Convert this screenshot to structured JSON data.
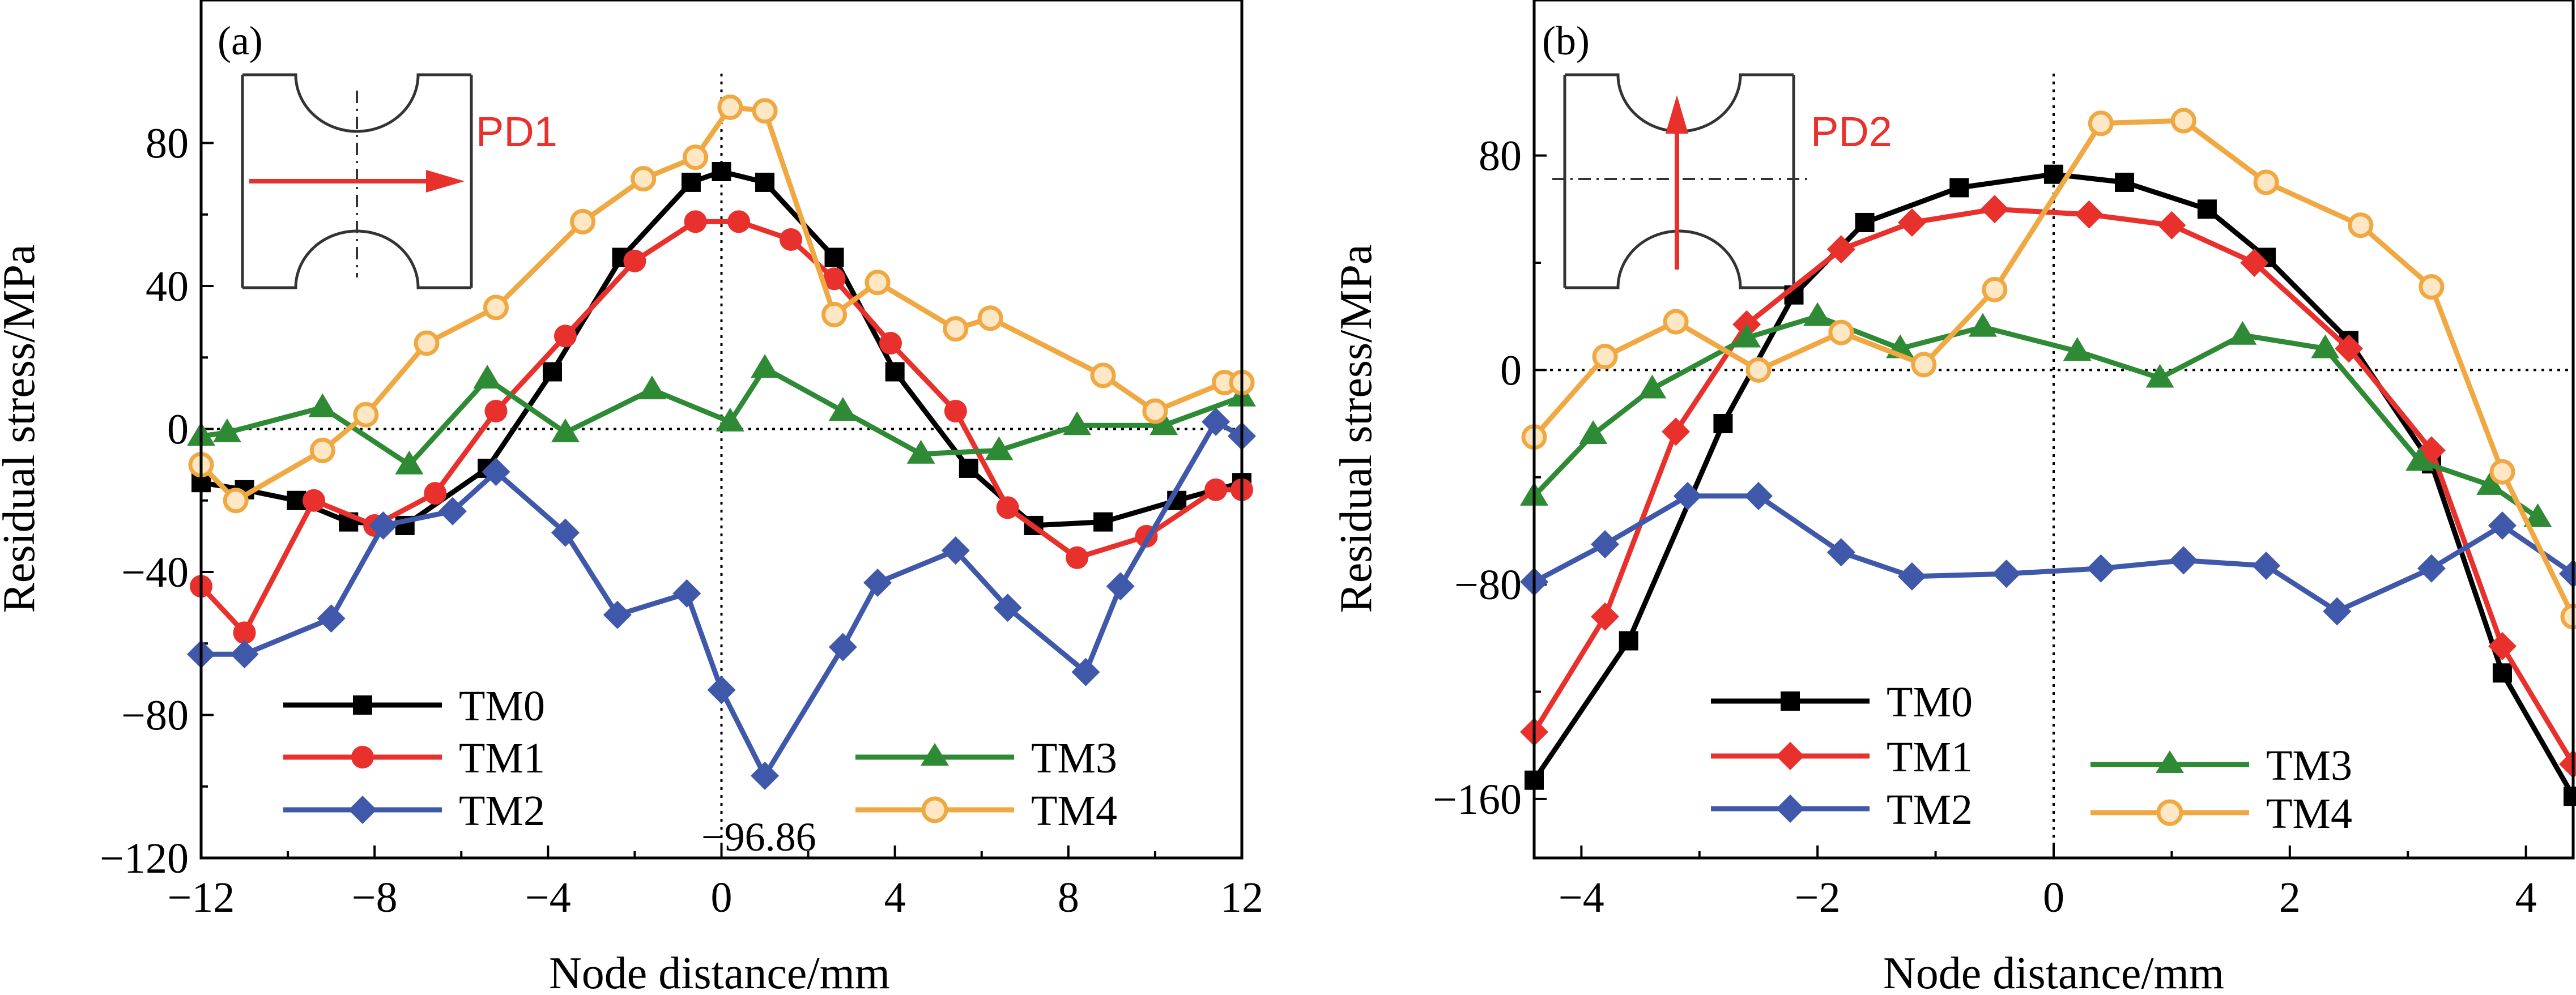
{
  "chart_data": [
    {
      "type": "line",
      "panel_label": "(a)",
      "xlabel": "Node distance/mm",
      "ylabel": "Residual stress/MPa",
      "xlim": [
        -12,
        12
      ],
      "ylim": [
        -120,
        120
      ],
      "xticks": [
        -12,
        -8,
        -4,
        0,
        4,
        8,
        12
      ],
      "xtick_labels": [
        "−12",
        "−8",
        "−4",
        "0",
        "4",
        "8",
        "12"
      ],
      "yticks": [
        -120,
        -80,
        -40,
        0,
        40,
        80
      ],
      "ytick_labels": [
        "−120",
        "−80",
        "−40",
        "0",
        "40",
        "80"
      ],
      "inset_label": "PD1",
      "inset_direction": "horizontal",
      "annotation": {
        "text": "−96.86",
        "x": 1.0,
        "y": -96.86
      },
      "series": [
        {
          "name": "TM0",
          "color": "#000000",
          "marker": "square",
          "x": [
            -12,
            -11,
            -9.8,
            -8.6,
            -7.3,
            -5.4,
            -3.9,
            -2.3,
            -0.7,
            0,
            1.0,
            2.6,
            4.0,
            5.7,
            7.2,
            8.8,
            10.5,
            12
          ],
          "y": [
            -15,
            -17,
            -20,
            -26,
            -27,
            -11,
            16,
            48,
            69,
            72,
            69,
            48,
            16,
            -11,
            -27,
            -26,
            -20,
            -15
          ]
        },
        {
          "name": "TM1",
          "color": "#e8312c",
          "marker": "circle",
          "x": [
            -12,
            -11,
            -9.4,
            -8,
            -6.6,
            -5.2,
            -3.6,
            -2,
            -0.6,
            0.4,
            1.6,
            2.6,
            3.9,
            5.4,
            6.6,
            8.2,
            9.8,
            11.4,
            12
          ],
          "y": [
            -44,
            -57,
            -20,
            -27,
            -18,
            5,
            26,
            47,
            58,
            58,
            53,
            42,
            24,
            5,
            -22,
            -36,
            -30,
            -17,
            -17
          ]
        },
        {
          "name": "TM2",
          "color": "#3f58a9",
          "marker": "diamond",
          "x": [
            -12,
            -11,
            -9,
            -7.8,
            -6.2,
            -5.2,
            -3.6,
            -2.4,
            -0.8,
            0,
            1,
            2.8,
            3.6,
            5.4,
            6.6,
            8.4,
            9.2,
            11.4,
            12
          ],
          "y": [
            -63,
            -63,
            -53,
            -27,
            -23,
            -12,
            -29,
            -52,
            -46,
            -73,
            -97,
            -61,
            -43,
            -34,
            -50,
            -68,
            -44,
            2,
            -2
          ]
        },
        {
          "name": "TM3",
          "color": "#2f8a35",
          "marker": "triangle",
          "x": [
            -12,
            -11.4,
            -9.2,
            -7.2,
            -5.4,
            -3.6,
            -1.6,
            0.2,
            1,
            2.8,
            4.6,
            6.4,
            8.2,
            10.2,
            12
          ],
          "y": [
            -2,
            -1,
            6,
            -10,
            14,
            -1,
            11,
            2,
            17,
            5,
            -7,
            -6,
            1,
            1,
            9
          ]
        },
        {
          "name": "TM4",
          "color": "#f0a843",
          "marker": "circle-open",
          "x": [
            -12,
            -11.2,
            -9.2,
            -8.2,
            -6.8,
            -5.2,
            -3.2,
            -1.8,
            -0.6,
            0.2,
            1,
            2.6,
            3.6,
            5.4,
            6.2,
            8.8,
            10,
            11.6,
            12
          ],
          "y": [
            -10,
            -20,
            -6,
            4,
            24,
            34,
            58,
            70,
            76,
            90,
            89,
            32,
            41,
            28,
            31,
            15,
            5,
            13,
            13
          ]
        }
      ]
    },
    {
      "type": "line",
      "panel_label": "(b)",
      "xlabel": "Node distance/mm",
      "ylabel": "Residual stress/MPa",
      "xlim": [
        -4.4,
        4.4
      ],
      "ylim": [
        -182,
        138
      ],
      "xticks": [
        -4,
        -2,
        0,
        2,
        4
      ],
      "xtick_labels": [
        "−4",
        "−2",
        "0",
        "2",
        "4"
      ],
      "yticks": [
        -160,
        -80,
        0,
        80
      ],
      "ytick_labels": [
        "−160",
        "−80",
        "0",
        "80"
      ],
      "inset_label": "PD2",
      "inset_direction": "vertical",
      "series": [
        {
          "name": "TM0",
          "color": "#000000",
          "marker": "square",
          "x": [
            -4.4,
            -3.6,
            -2.8,
            -2.2,
            -1.6,
            -0.8,
            0,
            0.6,
            1.3,
            1.8,
            2.5,
            3.2,
            3.8,
            4.4
          ],
          "y": [
            -153,
            -101,
            -20,
            28,
            55,
            68,
            73,
            70,
            60,
            42,
            11,
            -35,
            -113,
            -159
          ]
        },
        {
          "name": "TM1",
          "color": "#e8312c",
          "marker": "diamond",
          "x": [
            -4.4,
            -3.8,
            -3.2,
            -2.6,
            -1.8,
            -1.2,
            -0.5,
            0.3,
            1.0,
            1.7,
            2.5,
            3.2,
            3.8,
            4.4
          ],
          "y": [
            -135,
            -92,
            -23,
            17,
            45,
            55,
            60,
            58,
            54,
            40,
            8,
            -30,
            -103,
            -147
          ]
        },
        {
          "name": "TM2",
          "color": "#3f58a9",
          "marker": "diamond",
          "x": [
            -4.4,
            -3.8,
            -3.1,
            -2.5,
            -1.8,
            -1.2,
            -0.4,
            0.4,
            1.1,
            1.8,
            2.4,
            3.2,
            3.8,
            4.4
          ],
          "y": [
            -79,
            -65,
            -47,
            -47,
            -68,
            -77,
            -76,
            -74,
            -71,
            -73,
            -90,
            -74,
            -58,
            -76
          ]
        },
        {
          "name": "TM3",
          "color": "#2f8a35",
          "marker": "triangle",
          "x": [
            -4.4,
            -3.9,
            -3.4,
            -2.6,
            -2,
            -1.3,
            -0.6,
            0.2,
            0.9,
            1.6,
            2.3,
            3.1,
            3.7,
            4.1
          ],
          "y": [
            -47,
            -24,
            -7,
            12,
            20,
            8,
            16,
            7,
            -3,
            13,
            8,
            -34,
            -43,
            -55
          ]
        },
        {
          "name": "TM4",
          "color": "#f0a843",
          "marker": "circle-open",
          "x": [
            -4.4,
            -3.8,
            -3.2,
            -2.5,
            -1.8,
            -1.1,
            -0.5,
            0.4,
            1.1,
            1.8,
            2.6,
            3.2,
            3.8,
            4.4
          ],
          "y": [
            -25,
            5,
            18,
            0,
            14,
            2,
            30,
            92,
            93,
            70,
            54,
            31,
            -38,
            -92
          ]
        }
      ]
    }
  ]
}
